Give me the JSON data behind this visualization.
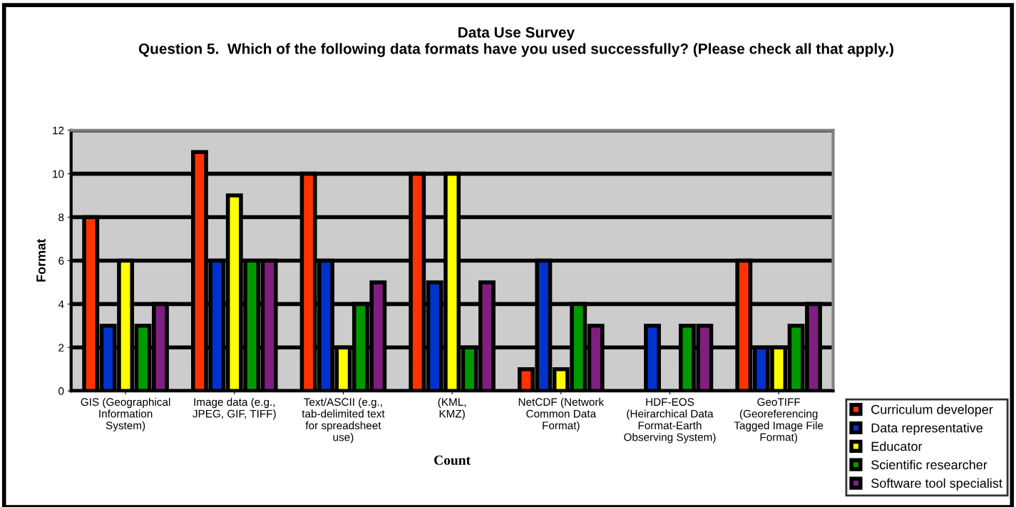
{
  "chart_data": {
    "type": "bar",
    "title": "Data Use Survey",
    "subtitle": "Question 5.  Which of the following data formats have you used successfully? (Please check all that apply.)",
    "xlabel": "Count",
    "ylabel": "Format",
    "categories": [
      "GIS (Geographical\nInformation\nSystem)",
      "Image data (e.g.,\nJPEG, GIF, TIFF)",
      "Text/ASCII (e.g.,\ntab-delimited text\nfor spreadsheet\nuse)",
      "(KML,\nKMZ)",
      "NetCDF (Network\nCommon Data\nFormat)",
      "HDF-EOS\n(Heirarchical Data\nFormat-Earth\nObserving System)",
      "GeoTIFF\n(Georeferencing\nTagged Image File\nFormat)"
    ],
    "series": [
      {
        "name": "Curriculum developer",
        "color": "#ff3300",
        "values": [
          8,
          11,
          10,
          10,
          1,
          null,
          6
        ]
      },
      {
        "name": "Data representative",
        "color": "#0033cc",
        "values": [
          3,
          6,
          6,
          5,
          6,
          3,
          2
        ]
      },
      {
        "name": "Educator",
        "color": "#ffff00",
        "values": [
          6,
          9,
          2,
          10,
          1,
          null,
          2
        ]
      },
      {
        "name": "Scientific researcher",
        "color": "#009900",
        "values": [
          3,
          6,
          4,
          2,
          4,
          3,
          3
        ]
      },
      {
        "name": "Software tool specialist",
        "color": "#7f1f7f",
        "values": [
          4,
          6,
          5,
          5,
          3,
          3,
          4
        ]
      }
    ],
    "ylim": [
      0,
      12
    ],
    "yticks": [
      0,
      2,
      4,
      6,
      8,
      10,
      12
    ],
    "grid": "y",
    "legend": "bottom right"
  }
}
